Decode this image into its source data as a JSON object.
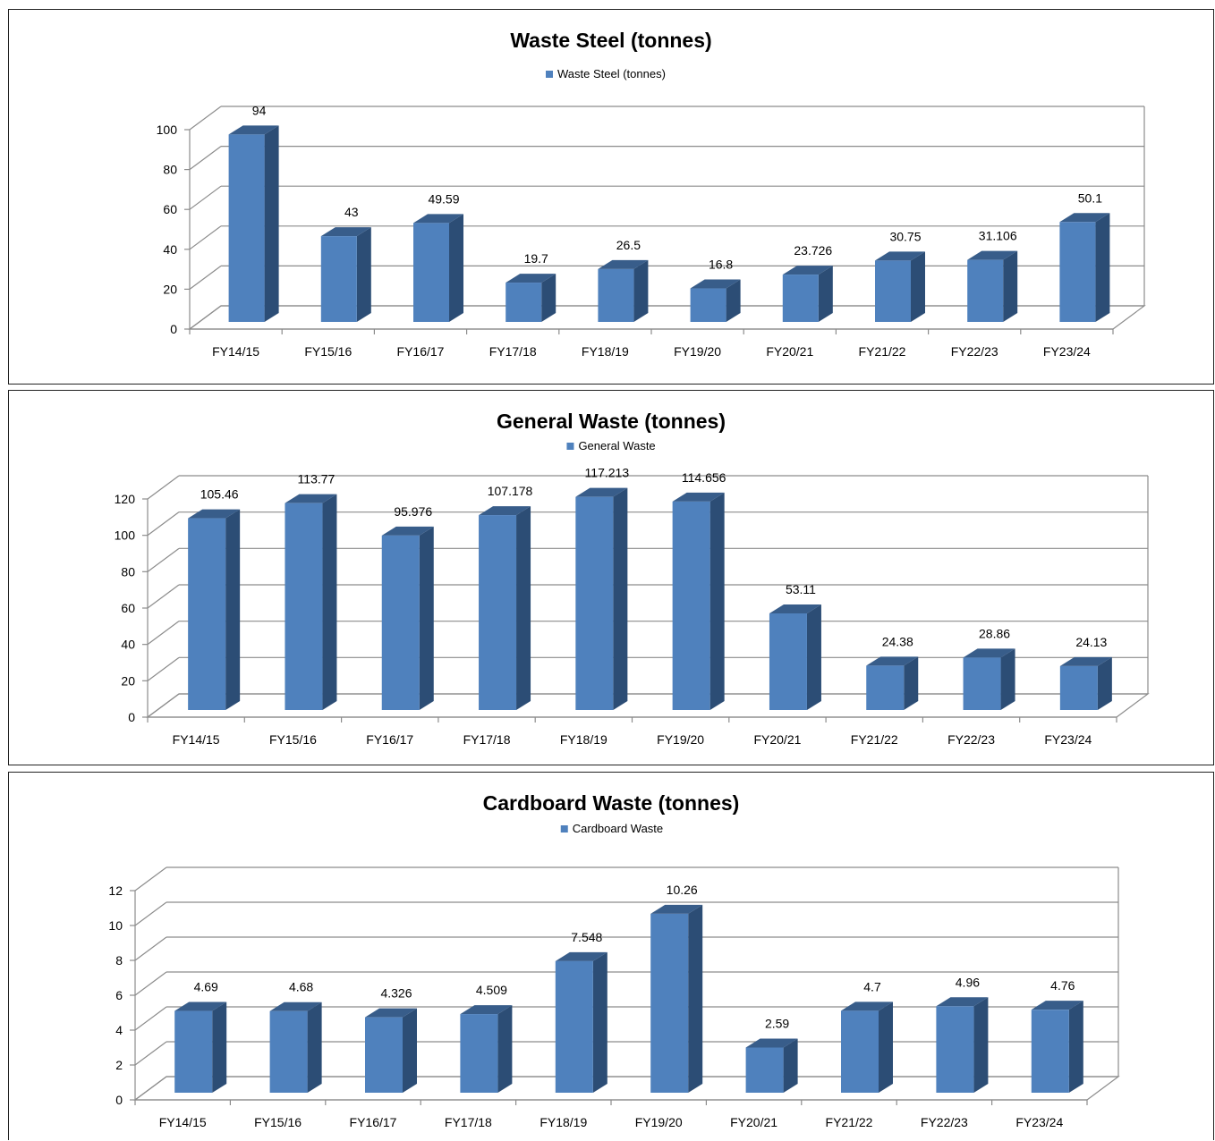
{
  "chart_data": [
    {
      "type": "bar",
      "title": "Waste Steel (tonnes)",
      "legend": "top",
      "categories": [
        "FY14/15",
        "FY15/16",
        "FY16/17",
        "FY17/18",
        "FY18/19",
        "FY19/20",
        "FY20/21",
        "FY21/22",
        "FY22/23",
        "FY23/24"
      ],
      "series": [
        {
          "name": "Waste Steel (tonnes)",
          "values": [
            94,
            43,
            49.59,
            19.7,
            26.5,
            16.8,
            23.726,
            30.75,
            31.106,
            50.1
          ],
          "labels": [
            "94",
            "43",
            "49.59",
            "19.7",
            "26.5",
            "16.8",
            "23.726",
            "30.75",
            "31.106",
            "50.1"
          ]
        }
      ],
      "yticks": [
        "0",
        "20",
        "40",
        "60",
        "80",
        "100"
      ],
      "ylim": [
        0,
        100
      ],
      "grid": true
    },
    {
      "type": "bar",
      "title": "General Waste (tonnes)",
      "legend": "top",
      "categories": [
        "FY14/15",
        "FY15/16",
        "FY16/17",
        "FY17/18",
        "FY18/19",
        "FY19/20",
        "FY20/21",
        "FY21/22",
        "FY22/23",
        "FY23/24"
      ],
      "series": [
        {
          "name": "General Waste",
          "values": [
            105.46,
            113.77,
            95.976,
            107.178,
            117.213,
            114.656,
            53.11,
            24.38,
            28.86,
            24.13
          ],
          "labels": [
            "105.46",
            "113.77",
            "95.976",
            "107.178",
            "117.213",
            "114.656",
            "53.11",
            "24.38",
            "28.86",
            "24.13"
          ]
        }
      ],
      "yticks": [
        "0",
        "20",
        "40",
        "60",
        "80",
        "100",
        "120"
      ],
      "ylim": [
        0,
        120
      ],
      "grid": true
    },
    {
      "type": "bar",
      "title": "Cardboard Waste (tonnes)",
      "legend": "top",
      "categories": [
        "FY14/15",
        "FY15/16",
        "FY16/17",
        "FY17/18",
        "FY18/19",
        "FY19/20",
        "FY20/21",
        "FY21/22",
        "FY22/23",
        "FY23/24"
      ],
      "series": [
        {
          "name": "Cardboard Waste",
          "values": [
            4.69,
            4.68,
            4.326,
            4.509,
            7.548,
            10.26,
            2.59,
            4.7,
            4.96,
            4.76
          ],
          "labels": [
            "4.69",
            "4.68",
            "4.326",
            "4.509",
            "7.548",
            "10.26",
            "2.59",
            "4.7",
            "4.96",
            "4.76"
          ]
        }
      ],
      "yticks": [
        "0",
        "2",
        "4",
        "6",
        "8",
        "10",
        "12"
      ],
      "ylim": [
        0,
        12
      ],
      "grid": true
    }
  ],
  "colors": {
    "bar_front": "#4f81bd",
    "bar_side": "#2c4d75",
    "bar_top": "#385d8a",
    "grid": "#8c8c8c",
    "text": "#000000"
  }
}
